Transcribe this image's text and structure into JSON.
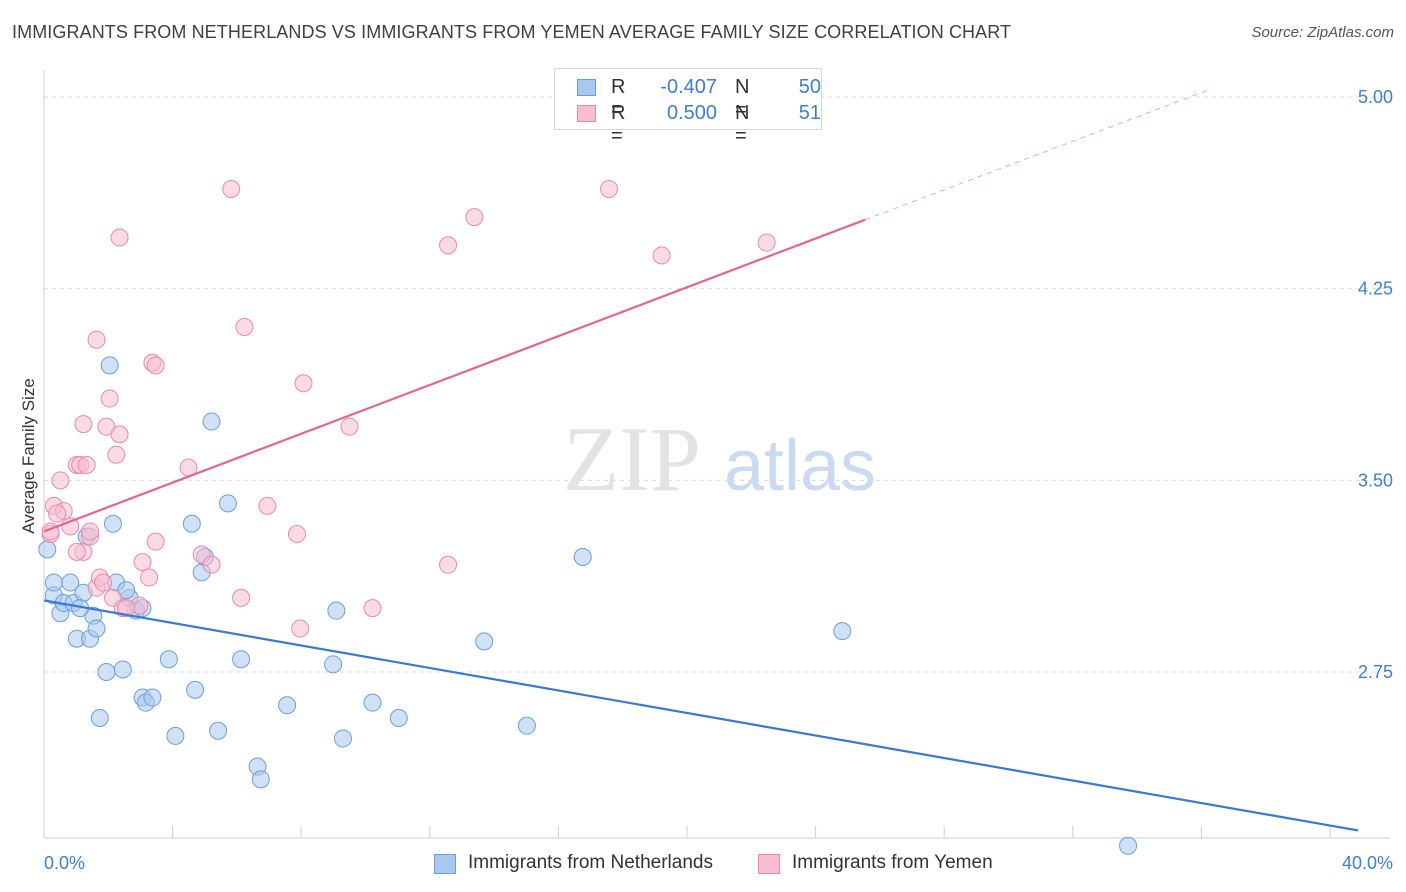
{
  "header": {
    "title": "IMMIGRANTS FROM NETHERLANDS VS IMMIGRANTS FROM YEMEN AVERAGE FAMILY SIZE CORRELATION CHART",
    "source": "Source: ZipAtlas.com"
  },
  "legend": {
    "rows": [
      {
        "r_label": "R =",
        "r_value": "-0.407",
        "n_label": "N =",
        "n_value": "50"
      },
      {
        "r_label": "R =",
        "r_value": "0.500",
        "n_label": "N =",
        "n_value": "51"
      }
    ]
  },
  "watermark": {
    "zip": "ZIP",
    "atlas": "atlas"
  },
  "colors": {
    "blue_fill": "#a9c8ef",
    "blue_stroke": "#6a9fde",
    "blue_line": "#3a78d4",
    "pink_fill": "#f6bed0",
    "pink_stroke": "#e98aab",
    "pink_line": "#e2668f",
    "tick_label": "#3f7fd0",
    "grid": "#dcdcdc"
  },
  "chart_data": {
    "type": "scatter",
    "title": "IMMIGRANTS FROM NETHERLANDS VS IMMIGRANTS FROM YEMEN AVERAGE FAMILY SIZE CORRELATION CHART",
    "xlabel": "",
    "ylabel": "Average Family Size",
    "xlim": [
      0,
      40
    ],
    "ylim": [
      2.1,
      5.1
    ],
    "x_tick_labels": [
      "0.0%",
      "40.0%"
    ],
    "y_ticks": [
      2.75,
      3.5,
      4.25,
      5.0
    ],
    "y_tick_labels": [
      "2.75",
      "3.50",
      "4.25",
      "5.00"
    ],
    "grid": true,
    "legend_position": "top-center",
    "series": [
      {
        "name": "Immigrants from Netherlands",
        "color": "#a9c8ef",
        "r": -0.407,
        "n": 50,
        "trend": {
          "x0": 0,
          "y0": 3.03,
          "x1": 40,
          "y1": 2.13
        },
        "points": [
          [
            0.1,
            3.23
          ],
          [
            0.3,
            3.05
          ],
          [
            0.3,
            3.1
          ],
          [
            0.5,
            2.98
          ],
          [
            0.6,
            3.02
          ],
          [
            0.8,
            3.1
          ],
          [
            0.9,
            3.02
          ],
          [
            1.0,
            2.88
          ],
          [
            1.2,
            3.06
          ],
          [
            1.3,
            3.28
          ],
          [
            1.4,
            2.88
          ],
          [
            1.5,
            2.97
          ],
          [
            1.6,
            2.92
          ],
          [
            1.7,
            2.57
          ],
          [
            1.9,
            2.75
          ],
          [
            2.1,
            3.33
          ],
          [
            2.2,
            3.1
          ],
          [
            2.4,
            2.76
          ],
          [
            2.6,
            3.04
          ],
          [
            2.8,
            2.99
          ],
          [
            3.0,
            2.65
          ],
          [
            3.1,
            2.63
          ],
          [
            3.3,
            2.65
          ],
          [
            3.8,
            2.8
          ],
          [
            4.0,
            2.5
          ],
          [
            4.5,
            3.33
          ],
          [
            4.6,
            2.68
          ],
          [
            4.8,
            3.14
          ],
          [
            4.9,
            3.2
          ],
          [
            5.1,
            3.73
          ],
          [
            5.3,
            2.52
          ],
          [
            5.6,
            3.41
          ],
          [
            6.0,
            2.8
          ],
          [
            6.5,
            2.38
          ],
          [
            6.6,
            2.33
          ],
          [
            7.4,
            2.62
          ],
          [
            8.8,
            2.78
          ],
          [
            8.9,
            2.99
          ],
          [
            9.1,
            2.49
          ],
          [
            10.0,
            2.63
          ],
          [
            10.8,
            2.57
          ],
          [
            13.4,
            2.87
          ],
          [
            14.7,
            2.54
          ],
          [
            16.4,
            3.2
          ],
          [
            24.3,
            2.91
          ],
          [
            33.0,
            2.07
          ],
          [
            2.0,
            3.95
          ],
          [
            3.0,
            3.0
          ],
          [
            1.1,
            3.0
          ],
          [
            2.5,
            3.07
          ]
        ]
      },
      {
        "name": "Immigrants from Yemen",
        "color": "#f6bed0",
        "r": 0.5,
        "n": 51,
        "trend": {
          "x0": 0,
          "y0": 3.3,
          "x1": 25,
          "y1": 4.52
        },
        "extrapolation": {
          "x0": 25,
          "y0": 4.52,
          "x1": 35.5,
          "y1": 5.03
        },
        "points": [
          [
            0.2,
            3.29
          ],
          [
            0.3,
            3.4
          ],
          [
            0.5,
            3.5
          ],
          [
            0.6,
            3.38
          ],
          [
            0.8,
            3.32
          ],
          [
            1.0,
            3.56
          ],
          [
            1.1,
            3.56
          ],
          [
            1.2,
            3.22
          ],
          [
            1.3,
            3.56
          ],
          [
            1.2,
            3.72
          ],
          [
            1.4,
            3.28
          ],
          [
            1.6,
            3.08
          ],
          [
            1.7,
            3.12
          ],
          [
            1.8,
            3.1
          ],
          [
            1.6,
            4.05
          ],
          [
            1.9,
            3.71
          ],
          [
            2.0,
            3.82
          ],
          [
            2.1,
            3.04
          ],
          [
            2.2,
            3.6
          ],
          [
            2.3,
            3.68
          ],
          [
            2.3,
            4.45
          ],
          [
            2.4,
            3.0
          ],
          [
            2.9,
            3.01
          ],
          [
            3.0,
            3.18
          ],
          [
            3.2,
            3.12
          ],
          [
            3.3,
            3.96
          ],
          [
            3.4,
            3.95
          ],
          [
            3.4,
            3.26
          ],
          [
            4.4,
            3.55
          ],
          [
            4.8,
            3.21
          ],
          [
            5.1,
            3.17
          ],
          [
            5.7,
            4.64
          ],
          [
            6.0,
            3.04
          ],
          [
            6.1,
            4.1
          ],
          [
            6.8,
            3.4
          ],
          [
            7.7,
            3.29
          ],
          [
            7.8,
            2.92
          ],
          [
            7.9,
            3.88
          ],
          [
            9.3,
            3.71
          ],
          [
            10.0,
            3.0
          ],
          [
            12.3,
            3.17
          ],
          [
            12.3,
            4.42
          ],
          [
            13.1,
            4.53
          ],
          [
            17.2,
            4.64
          ],
          [
            18.8,
            4.38
          ],
          [
            22.0,
            4.43
          ],
          [
            0.2,
            3.3
          ],
          [
            0.4,
            3.37
          ],
          [
            1.0,
            3.22
          ],
          [
            2.5,
            3.0
          ],
          [
            1.4,
            3.3
          ]
        ]
      }
    ]
  }
}
